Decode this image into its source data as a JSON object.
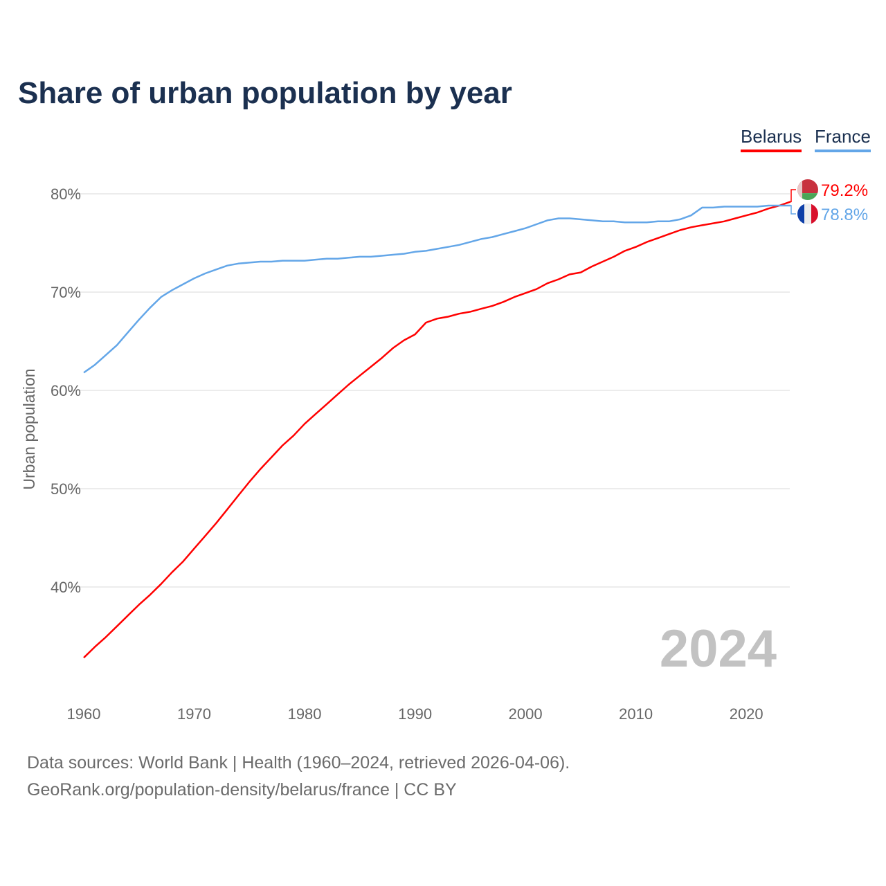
{
  "title": "Share of urban population by year",
  "legend": [
    {
      "name": "Belarus",
      "color": "#ff0000"
    },
    {
      "name": "France",
      "color": "#63a6e8"
    }
  ],
  "year_watermark": "2024",
  "footer": {
    "line1": "Data sources: World Bank | Health (1960–2024, retrieved 2026-04-06).",
    "line2": "GeoRank.org/population-density/belarus/france | CC BY"
  },
  "chart_data": {
    "type": "line",
    "title": "Share of urban population by year",
    "xlabel": "",
    "ylabel": "Urban population",
    "xlim": [
      1960,
      2024
    ],
    "ylim": [
      31,
      83
    ],
    "yticks": [
      40,
      50,
      60,
      70,
      80
    ],
    "ytick_labels": [
      "40%",
      "50%",
      "60%",
      "70%",
      "80%"
    ],
    "xticks": [
      1960,
      1970,
      1980,
      1990,
      2000,
      2010,
      2020
    ],
    "xtick_labels": [
      "1960",
      "1970",
      "1980",
      "1990",
      "2000",
      "2010",
      "2020"
    ],
    "grid": true,
    "legend_position": "top-right",
    "x_start": 1960,
    "series": [
      {
        "name": "Belarus",
        "color": "#ff0000",
        "end_label": "79.2%",
        "flag": "belarus-flag",
        "values": [
          32.8,
          33.9,
          34.9,
          36.0,
          37.1,
          38.2,
          39.2,
          40.3,
          41.5,
          42.6,
          43.9,
          45.2,
          46.5,
          47.9,
          49.3,
          50.7,
          52.0,
          53.2,
          54.4,
          55.4,
          56.6,
          57.6,
          58.6,
          59.6,
          60.6,
          61.5,
          62.4,
          63.3,
          64.3,
          65.1,
          65.7,
          66.9,
          67.3,
          67.5,
          67.8,
          68.0,
          68.3,
          68.6,
          69.0,
          69.5,
          69.9,
          70.3,
          70.9,
          71.3,
          71.8,
          72.0,
          72.6,
          73.1,
          73.6,
          74.2,
          74.6,
          75.1,
          75.5,
          75.9,
          76.3,
          76.6,
          76.8,
          77.0,
          77.2,
          77.5,
          77.8,
          78.1,
          78.5,
          78.8,
          79.2
        ]
      },
      {
        "name": "France",
        "color": "#63a6e8",
        "end_label": "78.8%",
        "flag": "france-flag",
        "values": [
          61.8,
          62.6,
          63.6,
          64.6,
          65.9,
          67.2,
          68.4,
          69.5,
          70.2,
          70.8,
          71.4,
          71.9,
          72.3,
          72.7,
          72.9,
          73.0,
          73.1,
          73.1,
          73.2,
          73.2,
          73.2,
          73.3,
          73.4,
          73.4,
          73.5,
          73.6,
          73.6,
          73.7,
          73.8,
          73.9,
          74.1,
          74.2,
          74.4,
          74.6,
          74.8,
          75.1,
          75.4,
          75.6,
          75.9,
          76.2,
          76.5,
          76.9,
          77.3,
          77.5,
          77.5,
          77.4,
          77.3,
          77.2,
          77.2,
          77.1,
          77.1,
          77.1,
          77.2,
          77.2,
          77.4,
          77.8,
          78.6,
          78.6,
          78.7,
          78.7,
          78.7,
          78.7,
          78.8,
          78.8,
          78.8
        ]
      }
    ]
  }
}
